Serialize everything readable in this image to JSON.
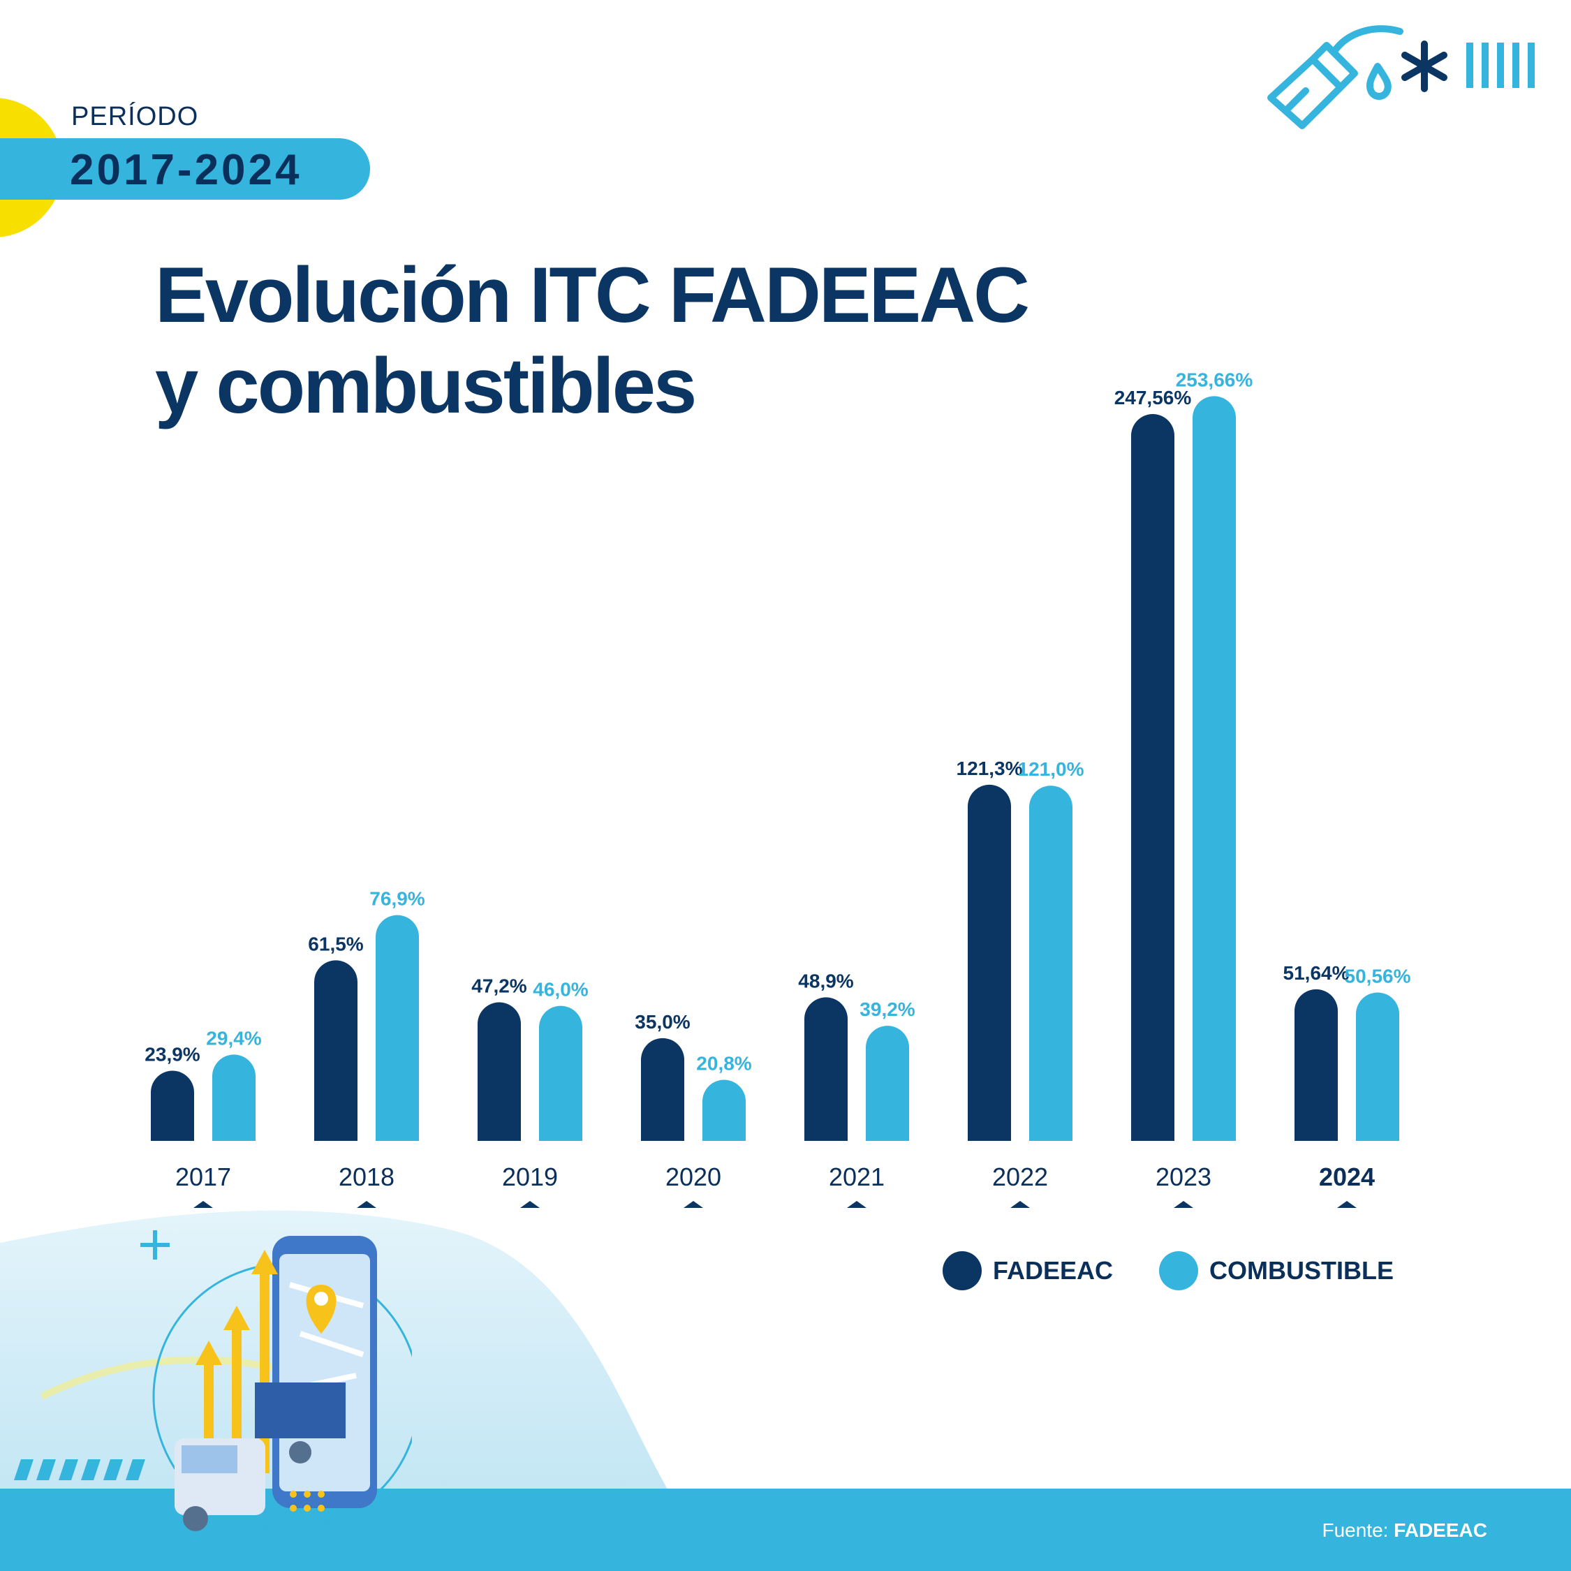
{
  "header": {
    "period_label": "PERÍODO",
    "period_value": "2017-2024",
    "title_line1": "Evolución ITC FADEEAC",
    "title_line2": "y combustibles"
  },
  "colors": {
    "fadeeac": "#0b3563",
    "combustible": "#35b4dd",
    "accent_yellow": "#f7d31a"
  },
  "chart_data": {
    "type": "bar",
    "title": "Evolución ITC FADEEAC y combustibles",
    "categories": [
      "2017",
      "2018",
      "2019",
      "2020",
      "2021",
      "2022",
      "2023",
      "2024"
    ],
    "series": [
      {
        "name": "FADEEAC",
        "values": [
          23.9,
          61.5,
          47.2,
          35.0,
          48.9,
          121.3,
          247.56,
          51.64
        ],
        "labels": [
          "23,9%",
          "61,5%",
          "47,2%",
          "35,0%",
          "48,9%",
          "121,3%",
          "247,56%",
          "51,64%"
        ]
      },
      {
        "name": "COMBUSTIBLE",
        "values": [
          29.4,
          76.9,
          46.0,
          20.8,
          39.2,
          121.0,
          253.66,
          50.56
        ],
        "labels": [
          "29,4%",
          "76,9%",
          "46,0%",
          "20,8%",
          "39,2%",
          "121,0%",
          "253,66%",
          "50,56%"
        ]
      }
    ],
    "legend_position": "bottom-right",
    "grid": false
  },
  "legend": {
    "fadeeac_label": "FADEEAC",
    "combustible_label": "COMBUSTIBLE"
  },
  "footer": {
    "source_prefix": "Fuente:",
    "source_value": "FADEEAC"
  },
  "icons": [
    "fuel-nozzle-icon",
    "asterisk-icon",
    "stripes-icon",
    "truck-phone-illustration"
  ]
}
